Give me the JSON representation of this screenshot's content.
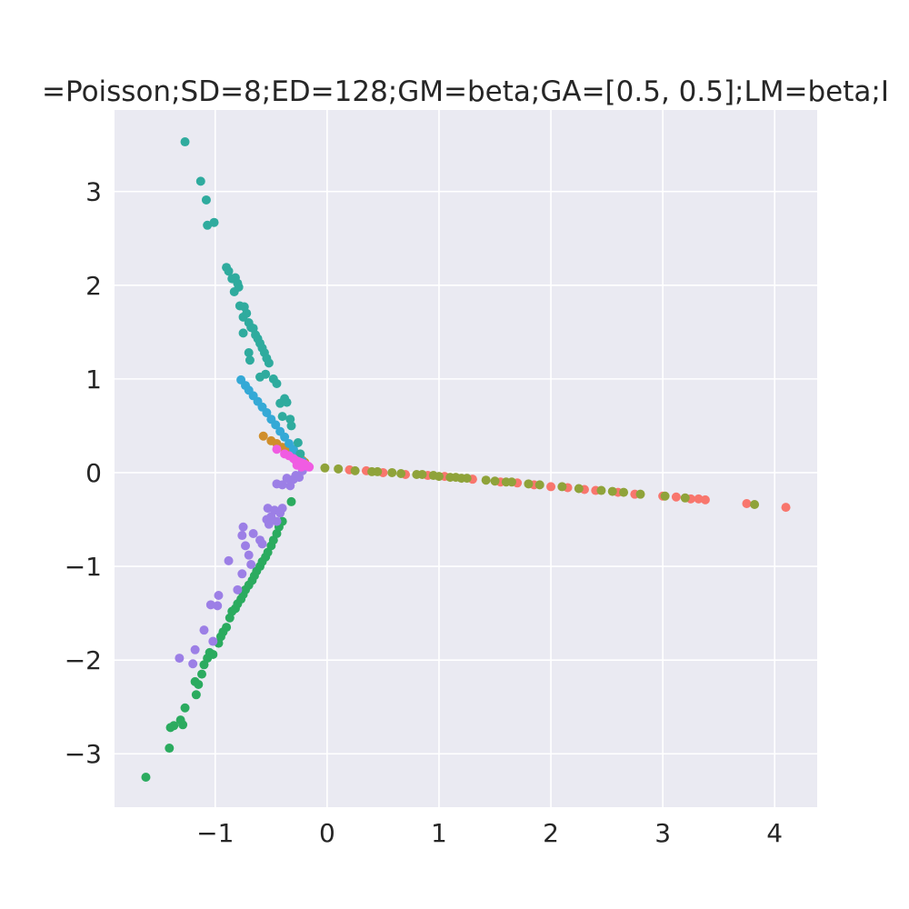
{
  "chart_data": {
    "type": "scatter",
    "title": "=Poisson;SD=8;ED=128;GM=beta;GA=[0.5, 0.5];LM=beta;I",
    "xlabel": "",
    "ylabel": "",
    "xlim": [
      -1.9,
      4.38
    ],
    "ylim": [
      -3.57,
      3.87
    ],
    "xticks": [
      -1,
      0,
      1,
      2,
      3,
      4
    ],
    "yticks": [
      -3,
      -2,
      -1,
      0,
      1,
      2,
      3
    ],
    "xtick_labels": [
      "−1",
      "0",
      "1",
      "2",
      "3",
      "4"
    ],
    "ytick_labels": [
      "−3",
      "−2",
      "−1",
      "0",
      "1",
      "2",
      "3"
    ],
    "grid": true,
    "legend": "none",
    "background": "#eaeaf2",
    "series": [
      {
        "color": "#f8766d",
        "points": [
          [
            0.2,
            0.03
          ],
          [
            0.35,
            0.02
          ],
          [
            0.5,
            0.0
          ],
          [
            0.7,
            -0.02
          ],
          [
            0.9,
            -0.03
          ],
          [
            1.05,
            -0.04
          ],
          [
            1.3,
            -0.07
          ],
          [
            1.55,
            -0.1
          ],
          [
            1.7,
            -0.11
          ],
          [
            1.85,
            -0.13
          ],
          [
            2.0,
            -0.15
          ],
          [
            2.15,
            -0.16
          ],
          [
            2.3,
            -0.18
          ],
          [
            2.4,
            -0.19
          ],
          [
            2.6,
            -0.21
          ],
          [
            2.75,
            -0.23
          ],
          [
            3.0,
            -0.25
          ],
          [
            3.12,
            -0.26
          ],
          [
            3.25,
            -0.28
          ],
          [
            3.32,
            -0.28
          ],
          [
            3.38,
            -0.29
          ],
          [
            3.75,
            -0.33
          ],
          [
            4.1,
            -0.37
          ]
        ]
      },
      {
        "color": "#8fa33a",
        "points": [
          [
            -0.02,
            0.05
          ],
          [
            0.1,
            0.04
          ],
          [
            0.25,
            0.02
          ],
          [
            0.4,
            0.01
          ],
          [
            0.45,
            0.01
          ],
          [
            0.58,
            0.0
          ],
          [
            0.66,
            -0.01
          ],
          [
            0.8,
            -0.02
          ],
          [
            0.85,
            -0.02
          ],
          [
            0.95,
            -0.03
          ],
          [
            1.0,
            -0.04
          ],
          [
            1.1,
            -0.05
          ],
          [
            1.15,
            -0.05
          ],
          [
            1.2,
            -0.06
          ],
          [
            1.25,
            -0.06
          ],
          [
            1.42,
            -0.08
          ],
          [
            1.5,
            -0.09
          ],
          [
            1.6,
            -0.1
          ],
          [
            1.65,
            -0.1
          ],
          [
            1.8,
            -0.12
          ],
          [
            1.9,
            -0.13
          ],
          [
            2.1,
            -0.15
          ],
          [
            2.25,
            -0.17
          ],
          [
            2.45,
            -0.19
          ],
          [
            2.55,
            -0.2
          ],
          [
            2.65,
            -0.21
          ],
          [
            2.8,
            -0.23
          ],
          [
            3.02,
            -0.25
          ],
          [
            3.2,
            -0.27
          ],
          [
            3.82,
            -0.34
          ]
        ]
      },
      {
        "color": "#d08e2b",
        "points": [
          [
            -0.57,
            0.39
          ],
          [
            -0.5,
            0.34
          ],
          [
            -0.45,
            0.31
          ],
          [
            -0.4,
            0.27
          ],
          [
            -0.35,
            0.24
          ],
          [
            -0.3,
            0.2
          ],
          [
            -0.26,
            0.17
          ],
          [
            -0.22,
            0.13
          ],
          [
            -0.2,
            0.11
          ]
        ]
      },
      {
        "color": "#35a9d6",
        "points": [
          [
            -0.77,
            0.99
          ],
          [
            -0.73,
            0.93
          ],
          [
            -0.7,
            0.88
          ],
          [
            -0.66,
            0.82
          ],
          [
            -0.62,
            0.76
          ],
          [
            -0.58,
            0.7
          ],
          [
            -0.54,
            0.64
          ],
          [
            -0.5,
            0.57
          ],
          [
            -0.46,
            0.51
          ],
          [
            -0.42,
            0.44
          ],
          [
            -0.38,
            0.38
          ],
          [
            -0.34,
            0.31
          ],
          [
            -0.3,
            0.25
          ],
          [
            -0.26,
            0.18
          ],
          [
            -0.22,
            0.12
          ],
          [
            -0.19,
            0.08
          ]
        ]
      },
      {
        "color": "#2fab9e",
        "points": [
          [
            -1.27,
            3.53
          ],
          [
            -1.13,
            3.11
          ],
          [
            -1.08,
            2.91
          ],
          [
            -1.07,
            2.64
          ],
          [
            -1.01,
            2.67
          ],
          [
            -0.9,
            2.19
          ],
          [
            -0.88,
            2.15
          ],
          [
            -0.85,
            2.07
          ],
          [
            -0.82,
            2.08
          ],
          [
            -0.83,
            1.93
          ],
          [
            -0.8,
            2.02
          ],
          [
            -0.79,
            1.98
          ],
          [
            -0.78,
            1.78
          ],
          [
            -0.75,
            1.66
          ],
          [
            -0.74,
            1.77
          ],
          [
            -0.72,
            1.7
          ],
          [
            -0.7,
            1.6
          ],
          [
            -0.68,
            1.55
          ],
          [
            -0.66,
            1.54
          ],
          [
            -0.64,
            1.47
          ],
          [
            -0.62,
            1.43
          ],
          [
            -0.6,
            1.38
          ],
          [
            -0.58,
            1.33
          ],
          [
            -0.56,
            1.28
          ],
          [
            -0.54,
            1.22
          ],
          [
            -0.52,
            1.17
          ],
          [
            -0.55,
            1.05
          ],
          [
            -0.6,
            1.02
          ],
          [
            -0.7,
            1.28
          ],
          [
            -0.69,
            1.2
          ],
          [
            -0.75,
            1.49
          ],
          [
            -0.48,
            1.0
          ],
          [
            -0.45,
            0.95
          ],
          [
            -0.42,
            0.74
          ],
          [
            -0.38,
            0.79
          ],
          [
            -0.36,
            0.75
          ],
          [
            -0.4,
            0.6
          ],
          [
            -0.33,
            0.57
          ],
          [
            -0.32,
            0.5
          ],
          [
            -0.26,
            0.32
          ],
          [
            -0.24,
            0.2
          ]
        ]
      },
      {
        "color": "#2bab5f",
        "points": [
          [
            -1.62,
            -3.25
          ],
          [
            -1.41,
            -2.94
          ],
          [
            -1.4,
            -2.72
          ],
          [
            -1.37,
            -2.7
          ],
          [
            -1.31,
            -2.64
          ],
          [
            -1.29,
            -2.69
          ],
          [
            -1.27,
            -2.51
          ],
          [
            -1.17,
            -2.37
          ],
          [
            -1.18,
            -2.23
          ],
          [
            -1.15,
            -2.26
          ],
          [
            -1.12,
            -2.15
          ],
          [
            -1.1,
            -2.05
          ],
          [
            -1.07,
            -1.98
          ],
          [
            -1.05,
            -1.92
          ],
          [
            -1.02,
            -1.94
          ],
          [
            -0.97,
            -1.82
          ],
          [
            -0.95,
            -1.75
          ],
          [
            -0.93,
            -1.7
          ],
          [
            -0.9,
            -1.65
          ],
          [
            -0.87,
            -1.55
          ],
          [
            -0.85,
            -1.48
          ],
          [
            -0.82,
            -1.45
          ],
          [
            -0.8,
            -1.4
          ],
          [
            -0.77,
            -1.35
          ],
          [
            -0.75,
            -1.3
          ],
          [
            -0.73,
            -1.25
          ],
          [
            -0.7,
            -1.2
          ],
          [
            -0.67,
            -1.15
          ],
          [
            -0.65,
            -1.1
          ],
          [
            -0.63,
            -1.05
          ],
          [
            -0.6,
            -1.0
          ],
          [
            -0.58,
            -0.95
          ],
          [
            -0.55,
            -0.9
          ],
          [
            -0.53,
            -0.85
          ],
          [
            -0.5,
            -0.78
          ],
          [
            -0.48,
            -0.72
          ],
          [
            -0.45,
            -0.65
          ],
          [
            -0.43,
            -0.58
          ],
          [
            -0.4,
            -0.52
          ],
          [
            -0.32,
            -0.31
          ]
        ]
      },
      {
        "color": "#9c7fe6",
        "points": [
          [
            -1.32,
            -1.98
          ],
          [
            -1.2,
            -2.04
          ],
          [
            -1.18,
            -1.89
          ],
          [
            -1.1,
            -1.68
          ],
          [
            -1.04,
            -1.41
          ],
          [
            -0.98,
            -1.42
          ],
          [
            -0.97,
            -1.31
          ],
          [
            -1.02,
            -1.8
          ],
          [
            -0.88,
            -0.94
          ],
          [
            -0.8,
            -1.25
          ],
          [
            -0.75,
            -0.58
          ],
          [
            -0.76,
            -0.67
          ],
          [
            -0.73,
            -0.78
          ],
          [
            -0.7,
            -0.88
          ],
          [
            -0.68,
            -0.98
          ],
          [
            -0.76,
            -1.08
          ],
          [
            -0.66,
            -0.65
          ],
          [
            -0.6,
            -0.72
          ],
          [
            -0.58,
            -0.76
          ],
          [
            -0.54,
            -0.5
          ],
          [
            -0.52,
            -0.55
          ],
          [
            -0.53,
            -0.38
          ],
          [
            -0.5,
            -0.47
          ],
          [
            -0.47,
            -0.4
          ],
          [
            -0.45,
            -0.52
          ],
          [
            -0.42,
            -0.43
          ],
          [
            -0.4,
            -0.38
          ],
          [
            -0.45,
            -0.12
          ],
          [
            -0.4,
            -0.13
          ],
          [
            -0.36,
            -0.06
          ],
          [
            -0.33,
            -0.14
          ],
          [
            -0.3,
            -0.07
          ],
          [
            -0.28,
            -0.03
          ],
          [
            -0.25,
            -0.05
          ],
          [
            -0.22,
            0.02
          ]
        ]
      },
      {
        "color": "#f05ce2",
        "points": [
          [
            -0.45,
            0.25
          ],
          [
            -0.38,
            0.2
          ],
          [
            -0.34,
            0.18
          ],
          [
            -0.3,
            0.15
          ],
          [
            -0.28,
            0.13
          ],
          [
            -0.26,
            0.12
          ],
          [
            -0.24,
            0.11
          ],
          [
            -0.22,
            0.1
          ],
          [
            -0.2,
            0.09
          ],
          [
            -0.19,
            0.08
          ],
          [
            -0.18,
            0.07
          ],
          [
            -0.17,
            0.07
          ],
          [
            -0.16,
            0.06
          ],
          [
            -0.23,
            0.06
          ],
          [
            -0.27,
            0.08
          ]
        ]
      }
    ]
  }
}
